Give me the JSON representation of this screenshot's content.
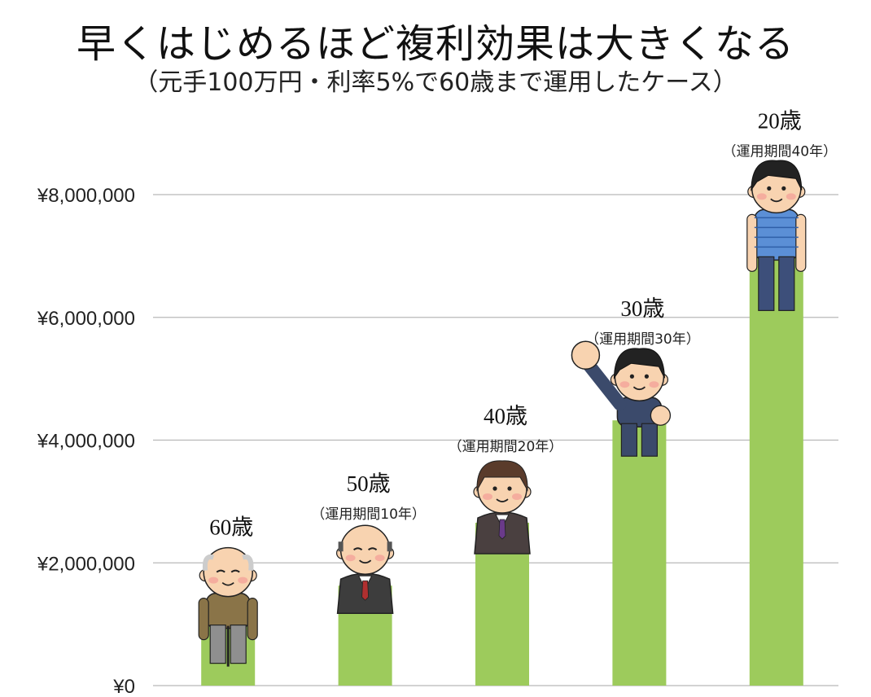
{
  "title": "早くはじめるほど複利効果は大きくなる",
  "subtitle": "（元手100万円・利率5%で60歳まで運用したケース）",
  "colors": {
    "bar": "#9dcb5c",
    "grid": "#b8b8b8"
  },
  "chart_data": {
    "type": "bar",
    "categories": [
      "60歳",
      "50歳",
      "40歳",
      "30歳",
      "20歳"
    ],
    "periods": [
      "",
      "（運用期間10年）",
      "（運用期間20年）",
      "（運用期間30年）",
      "（運用期間40年）"
    ],
    "values": [
      1000000,
      1628895,
      2653298,
      4321942,
      7039989
    ],
    "yticks": [
      "¥0",
      "¥2,000,000",
      "¥4,000,000",
      "¥6,000,000",
      "¥8,000,000"
    ],
    "ylim": [
      0,
      8000000
    ],
    "grid": true,
    "illustrations": [
      "elderly-man-with-cane",
      "bald-senior-man",
      "middle-aged-man",
      "young-businessman-fist-raised",
      "young-man-casual"
    ]
  }
}
